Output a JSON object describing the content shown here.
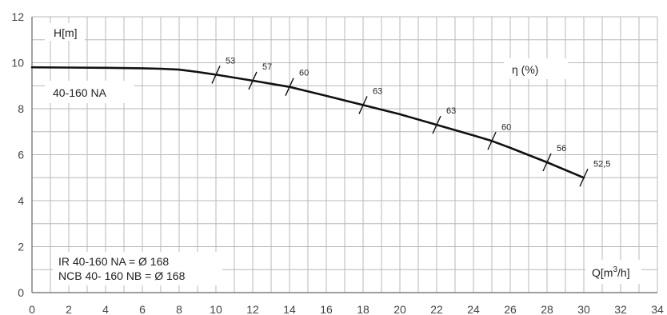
{
  "chart_data": {
    "type": "line",
    "title": "",
    "xlabel": "Q[m³/h]",
    "xlabel_parts": {
      "base": "Q[m",
      "sup": "3",
      "tail": "/h]"
    },
    "ylabel": "H[m]",
    "xlim": [
      0,
      34
    ],
    "ylim": [
      0,
      12
    ],
    "x_ticks": [
      "0",
      "2",
      "4",
      "6",
      "8",
      "10",
      "12",
      "14",
      "16",
      "18",
      "20",
      "22",
      "24",
      "26",
      "28",
      "30",
      "32",
      "34"
    ],
    "y_ticks": [
      "0",
      "2",
      "4",
      "6",
      "8",
      "10",
      "12"
    ],
    "grid": true,
    "colors": {
      "grid": "#b8b8b8",
      "curve": "#111111",
      "text": "#222222"
    },
    "series": [
      {
        "name": "40-160 NA",
        "x": [
          0,
          2,
          4,
          6,
          7,
          8,
          9,
          10,
          12,
          14,
          16,
          18,
          20,
          22,
          24,
          25,
          26,
          28,
          30
        ],
        "y": [
          9.8,
          9.79,
          9.78,
          9.76,
          9.74,
          9.7,
          9.6,
          9.48,
          9.22,
          8.95,
          8.56,
          8.16,
          7.76,
          7.3,
          6.84,
          6.6,
          6.3,
          5.67,
          5.0
        ]
      }
    ],
    "efficiency_axis_label": "η (%)",
    "efficiency_marks": [
      {
        "x": 10,
        "y": 9.48,
        "label": "53"
      },
      {
        "x": 12,
        "y": 9.22,
        "label": "57"
      },
      {
        "x": 14,
        "y": 8.95,
        "label": "60"
      },
      {
        "x": 18,
        "y": 8.16,
        "label": "63"
      },
      {
        "x": 22,
        "y": 7.3,
        "label": "63"
      },
      {
        "x": 25,
        "y": 6.6,
        "label": "60"
      },
      {
        "x": 28,
        "y": 5.67,
        "label": "56"
      },
      {
        "x": 30,
        "y": 5.0,
        "label": "52,5"
      }
    ],
    "annotations": {
      "model": "40-160 NA",
      "notes": [
        "IR 40-160 NA = Ø 168",
        "NCB 40- 160 NB = Ø 168"
      ]
    }
  }
}
